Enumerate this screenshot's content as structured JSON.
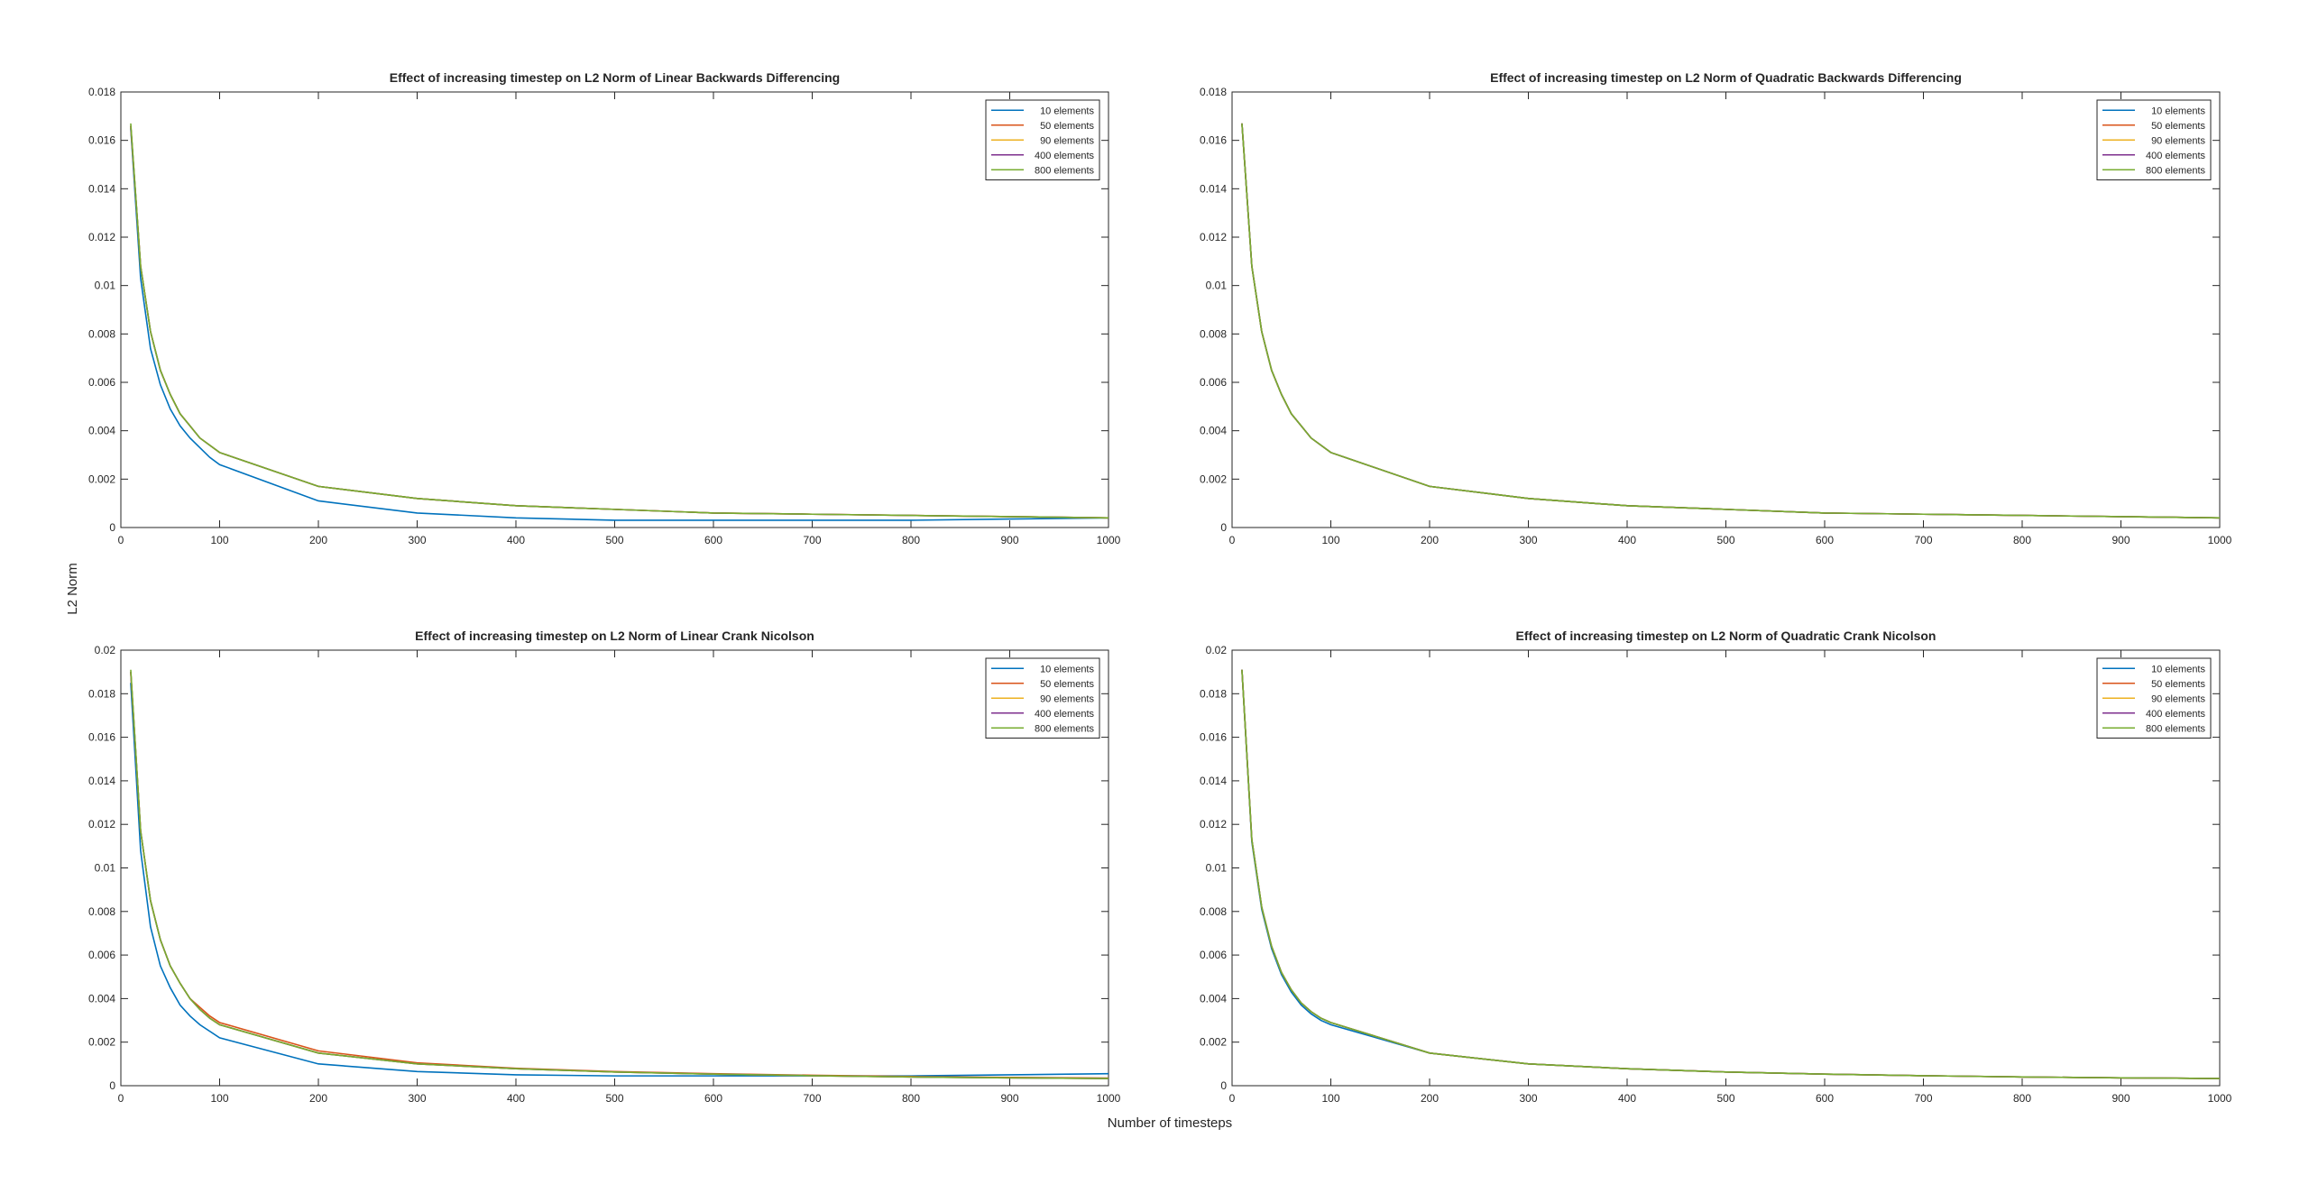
{
  "figure": {
    "shared_xlabel": "Number of timesteps",
    "shared_ylabel": "L2 Norm"
  },
  "chart_data": [
    {
      "type": "line",
      "title": "Effect of increasing timestep on L2 Norm of Linear Backwards Differencing",
      "xlabel": "Number of timesteps",
      "ylabel": "L2 Norm",
      "xlim": [
        0,
        1000
      ],
      "ylim": [
        0,
        0.018
      ],
      "xticks": [
        "0",
        "100",
        "200",
        "300",
        "400",
        "500",
        "600",
        "700",
        "800",
        "900",
        "1000"
      ],
      "yticks": [
        "0",
        "0.002",
        "0.004",
        "0.006",
        "0.008",
        "0.01",
        "0.012",
        "0.014",
        "0.016",
        "0.018"
      ],
      "grid": false,
      "legend_position": "top-right",
      "x": [
        10,
        20,
        30,
        40,
        50,
        60,
        70,
        80,
        90,
        100,
        200,
        300,
        400,
        500,
        600,
        700,
        800,
        900,
        1000
      ],
      "series": [
        {
          "name": "10 elements",
          "color": "#0072BD",
          "values": [
            0.0165,
            0.0103,
            0.0074,
            0.0059,
            0.0049,
            0.0042,
            0.0037,
            0.0033,
            0.0029,
            0.0026,
            0.0011,
            0.0006,
            0.0004,
            0.0003,
            0.0003,
            0.0003,
            0.0003,
            0.00035,
            0.0004
          ]
        },
        {
          "name": "50 elements",
          "color": "#D95319",
          "values": [
            0.0166,
            0.0108,
            0.0081,
            0.0065,
            0.0055,
            0.0047,
            0.0042,
            0.0037,
            0.0034,
            0.0031,
            0.0017,
            0.0012,
            0.0009,
            0.00075,
            0.0006,
            0.00055,
            0.0005,
            0.00045,
            0.0004
          ]
        },
        {
          "name": "90 elements",
          "color": "#EDB120",
          "values": [
            0.0166,
            0.0108,
            0.0081,
            0.0065,
            0.0055,
            0.0047,
            0.0042,
            0.0037,
            0.0034,
            0.0031,
            0.0017,
            0.0012,
            0.0009,
            0.00075,
            0.0006,
            0.00055,
            0.0005,
            0.00045,
            0.0004
          ]
        },
        {
          "name": "400 elements",
          "color": "#7E2F8E",
          "values": [
            0.0166,
            0.0108,
            0.0081,
            0.0065,
            0.0055,
            0.0047,
            0.0042,
            0.0037,
            0.0034,
            0.0031,
            0.0017,
            0.0012,
            0.0009,
            0.00075,
            0.0006,
            0.00055,
            0.0005,
            0.00045,
            0.0004
          ]
        },
        {
          "name": "800 elements",
          "color": "#77AC30",
          "values": [
            0.0167,
            0.0108,
            0.0081,
            0.0065,
            0.0055,
            0.0047,
            0.0042,
            0.0037,
            0.0034,
            0.0031,
            0.0017,
            0.0012,
            0.0009,
            0.00075,
            0.0006,
            0.00055,
            0.0005,
            0.00045,
            0.0004
          ]
        }
      ]
    },
    {
      "type": "line",
      "title": "Effect of increasing timestep on L2 Norm of Quadratic Backwards Differencing",
      "xlabel": "Number of timesteps",
      "ylabel": "L2 Norm",
      "xlim": [
        0,
        1000
      ],
      "ylim": [
        0,
        0.018
      ],
      "xticks": [
        "0",
        "100",
        "200",
        "300",
        "400",
        "500",
        "600",
        "700",
        "800",
        "900",
        "1000"
      ],
      "yticks": [
        "0",
        "0.002",
        "0.004",
        "0.006",
        "0.008",
        "0.01",
        "0.012",
        "0.014",
        "0.016",
        "0.018"
      ],
      "grid": false,
      "legend_position": "top-right",
      "x": [
        10,
        20,
        30,
        40,
        50,
        60,
        70,
        80,
        90,
        100,
        200,
        300,
        400,
        500,
        600,
        700,
        800,
        900,
        1000
      ],
      "series": [
        {
          "name": "10 elements",
          "color": "#0072BD",
          "values": [
            0.0167,
            0.0108,
            0.0081,
            0.0065,
            0.0055,
            0.0047,
            0.0042,
            0.0037,
            0.0034,
            0.0031,
            0.0017,
            0.0012,
            0.0009,
            0.00075,
            0.0006,
            0.00055,
            0.0005,
            0.00045,
            0.0004
          ]
        },
        {
          "name": "50 elements",
          "color": "#D95319",
          "values": [
            0.0167,
            0.0108,
            0.0081,
            0.0065,
            0.0055,
            0.0047,
            0.0042,
            0.0037,
            0.0034,
            0.0031,
            0.0017,
            0.0012,
            0.0009,
            0.00075,
            0.0006,
            0.00055,
            0.0005,
            0.00045,
            0.0004
          ]
        },
        {
          "name": "90 elements",
          "color": "#EDB120",
          "values": [
            0.0167,
            0.0108,
            0.0081,
            0.0065,
            0.0055,
            0.0047,
            0.0042,
            0.0037,
            0.0034,
            0.0031,
            0.0017,
            0.0012,
            0.0009,
            0.00075,
            0.0006,
            0.00055,
            0.0005,
            0.00045,
            0.0004
          ]
        },
        {
          "name": "400 elements",
          "color": "#7E2F8E",
          "values": [
            0.0167,
            0.0108,
            0.0081,
            0.0065,
            0.0055,
            0.0047,
            0.0042,
            0.0037,
            0.0034,
            0.0031,
            0.0017,
            0.0012,
            0.0009,
            0.00075,
            0.0006,
            0.00055,
            0.0005,
            0.00045,
            0.0004
          ]
        },
        {
          "name": "800 elements",
          "color": "#77AC30",
          "values": [
            0.0167,
            0.0108,
            0.0081,
            0.0065,
            0.0055,
            0.0047,
            0.0042,
            0.0037,
            0.0034,
            0.0031,
            0.0017,
            0.0012,
            0.0009,
            0.00075,
            0.0006,
            0.00055,
            0.0005,
            0.00045,
            0.0004
          ]
        }
      ]
    },
    {
      "type": "line",
      "title": "Effect of increasing timestep on L2 Norm of Linear Crank Nicolson",
      "xlabel": "Number of timesteps",
      "ylabel": "L2 Norm",
      "xlim": [
        0,
        1000
      ],
      "ylim": [
        0,
        0.02
      ],
      "xticks": [
        "0",
        "100",
        "200",
        "300",
        "400",
        "500",
        "600",
        "700",
        "800",
        "900",
        "1000"
      ],
      "yticks": [
        "0",
        "0.002",
        "0.004",
        "0.006",
        "0.008",
        "0.01",
        "0.012",
        "0.014",
        "0.016",
        "0.018",
        "0.02"
      ],
      "grid": false,
      "legend_position": "top-right",
      "x": [
        10,
        20,
        30,
        40,
        50,
        60,
        70,
        80,
        90,
        100,
        200,
        300,
        400,
        500,
        600,
        700,
        800,
        900,
        1000
      ],
      "series": [
        {
          "name": "10 elements",
          "color": "#0072BD",
          "values": [
            0.0185,
            0.0108,
            0.0073,
            0.0055,
            0.0045,
            0.0037,
            0.0032,
            0.0028,
            0.0025,
            0.0022,
            0.001,
            0.00065,
            0.0005,
            0.00045,
            0.00045,
            0.00045,
            0.00045,
            0.0005,
            0.00055
          ]
        },
        {
          "name": "50 elements",
          "color": "#D95319",
          "values": [
            0.019,
            0.0117,
            0.0085,
            0.0067,
            0.0055,
            0.0047,
            0.004,
            0.0036,
            0.0032,
            0.0029,
            0.0016,
            0.00105,
            0.0008,
            0.00065,
            0.00055,
            0.00048,
            0.00042,
            0.00038,
            0.00035
          ]
        },
        {
          "name": "90 elements",
          "color": "#EDB120",
          "values": [
            0.019,
            0.0117,
            0.0085,
            0.0067,
            0.0055,
            0.0047,
            0.004,
            0.0035,
            0.0031,
            0.0028,
            0.0015,
            0.001,
            0.00078,
            0.00063,
            0.00053,
            0.00046,
            0.0004,
            0.00036,
            0.00033
          ]
        },
        {
          "name": "400 elements",
          "color": "#7E2F8E",
          "values": [
            0.019,
            0.0117,
            0.0085,
            0.0067,
            0.0055,
            0.0047,
            0.004,
            0.0035,
            0.0031,
            0.0028,
            0.0015,
            0.001,
            0.00078,
            0.00063,
            0.00053,
            0.00046,
            0.0004,
            0.00036,
            0.00033
          ]
        },
        {
          "name": "800 elements",
          "color": "#77AC30",
          "values": [
            0.0191,
            0.0117,
            0.0085,
            0.0067,
            0.0055,
            0.0047,
            0.004,
            0.0035,
            0.0031,
            0.0028,
            0.0015,
            0.001,
            0.00078,
            0.00063,
            0.00053,
            0.00046,
            0.0004,
            0.00036,
            0.00033
          ]
        }
      ]
    },
    {
      "type": "line",
      "title": "Effect of increasing timestep on L2 Norm of Quadratic Crank Nicolson",
      "xlabel": "Number of timesteps",
      "ylabel": "L2 Norm",
      "xlim": [
        0,
        1000
      ],
      "ylim": [
        0,
        0.02
      ],
      "xticks": [
        "0",
        "100",
        "200",
        "300",
        "400",
        "500",
        "600",
        "700",
        "800",
        "900",
        "1000"
      ],
      "yticks": [
        "0",
        "0.002",
        "0.004",
        "0.006",
        "0.008",
        "0.01",
        "0.012",
        "0.014",
        "0.016",
        "0.018",
        "0.02"
      ],
      "grid": false,
      "legend_position": "top-right",
      "x": [
        10,
        20,
        30,
        40,
        50,
        60,
        70,
        80,
        90,
        100,
        200,
        300,
        400,
        500,
        600,
        700,
        800,
        900,
        1000
      ],
      "series": [
        {
          "name": "10 elements",
          "color": "#0072BD",
          "values": [
            0.0191,
            0.0112,
            0.0081,
            0.0063,
            0.0051,
            0.0043,
            0.0037,
            0.0033,
            0.003,
            0.0028,
            0.0015,
            0.001,
            0.00078,
            0.00063,
            0.00053,
            0.00046,
            0.0004,
            0.00036,
            0.00033
          ]
        },
        {
          "name": "50 elements",
          "color": "#D95319",
          "values": [
            0.0191,
            0.0113,
            0.0082,
            0.0064,
            0.0052,
            0.0044,
            0.0038,
            0.0034,
            0.0031,
            0.0029,
            0.0015,
            0.001,
            0.00078,
            0.00063,
            0.00053,
            0.00046,
            0.0004,
            0.00036,
            0.00033
          ]
        },
        {
          "name": "90 elements",
          "color": "#EDB120",
          "values": [
            0.0191,
            0.0113,
            0.0082,
            0.0064,
            0.0052,
            0.0044,
            0.0038,
            0.0034,
            0.0031,
            0.0029,
            0.0015,
            0.001,
            0.00078,
            0.00063,
            0.00053,
            0.00046,
            0.0004,
            0.00036,
            0.00033
          ]
        },
        {
          "name": "400 elements",
          "color": "#7E2F8E",
          "values": [
            0.0191,
            0.0113,
            0.0082,
            0.0064,
            0.0052,
            0.0044,
            0.0038,
            0.0034,
            0.0031,
            0.0029,
            0.0015,
            0.001,
            0.00078,
            0.00063,
            0.00053,
            0.00046,
            0.0004,
            0.00036,
            0.00033
          ]
        },
        {
          "name": "800 elements",
          "color": "#77AC30",
          "values": [
            0.0191,
            0.0113,
            0.0082,
            0.0064,
            0.0052,
            0.0044,
            0.0038,
            0.0034,
            0.0031,
            0.0029,
            0.0015,
            0.001,
            0.00078,
            0.00063,
            0.00053,
            0.00046,
            0.0004,
            0.00036,
            0.00033
          ]
        }
      ]
    }
  ]
}
